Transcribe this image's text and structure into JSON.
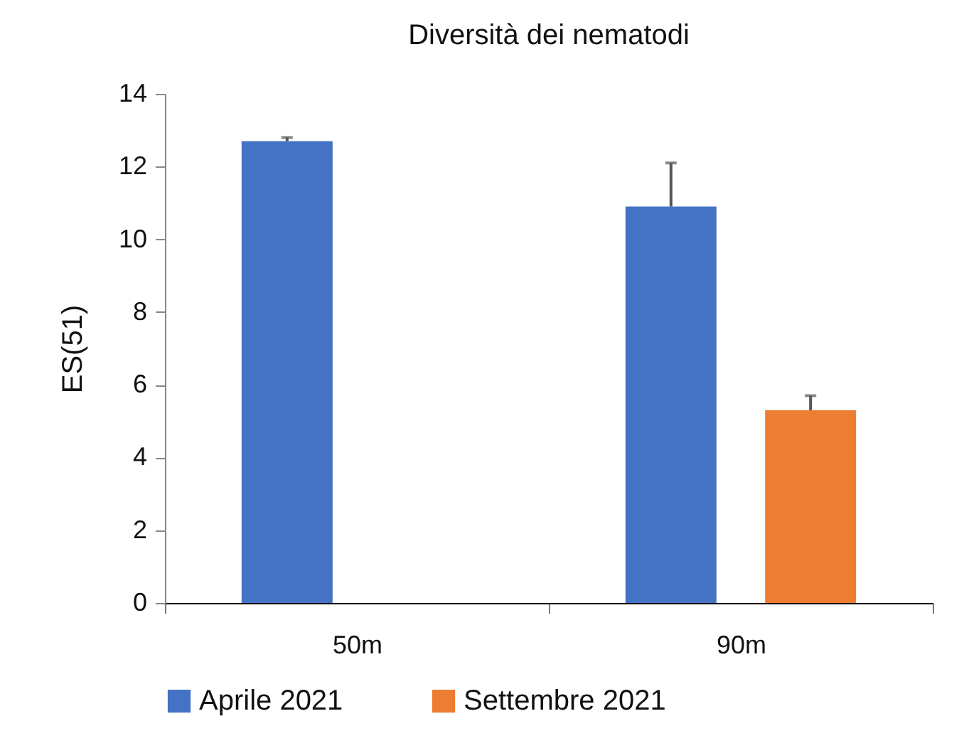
{
  "chart_data": {
    "type": "bar",
    "title": "Diversità dei nematodi",
    "ylabel": "ES(51)",
    "categories": [
      "50m",
      "90m"
    ],
    "series": [
      {
        "name": "Aprile 2021",
        "color": "#4472c4",
        "values": [
          12.7,
          10.9
        ],
        "errors": [
          [
            12.7,
            12.8
          ],
          [
            10.9,
            12.1
          ]
        ]
      },
      {
        "name": "Settembre 2021",
        "color": "#ed7d31",
        "values": [
          null,
          5.3
        ],
        "errors": [
          null,
          [
            5.3,
            5.7
          ]
        ]
      }
    ],
    "ylim": [
      0,
      14
    ],
    "yticks": [
      0,
      2,
      4,
      6,
      8,
      10,
      12,
      14
    ],
    "grid": false,
    "legend": "bottom"
  }
}
